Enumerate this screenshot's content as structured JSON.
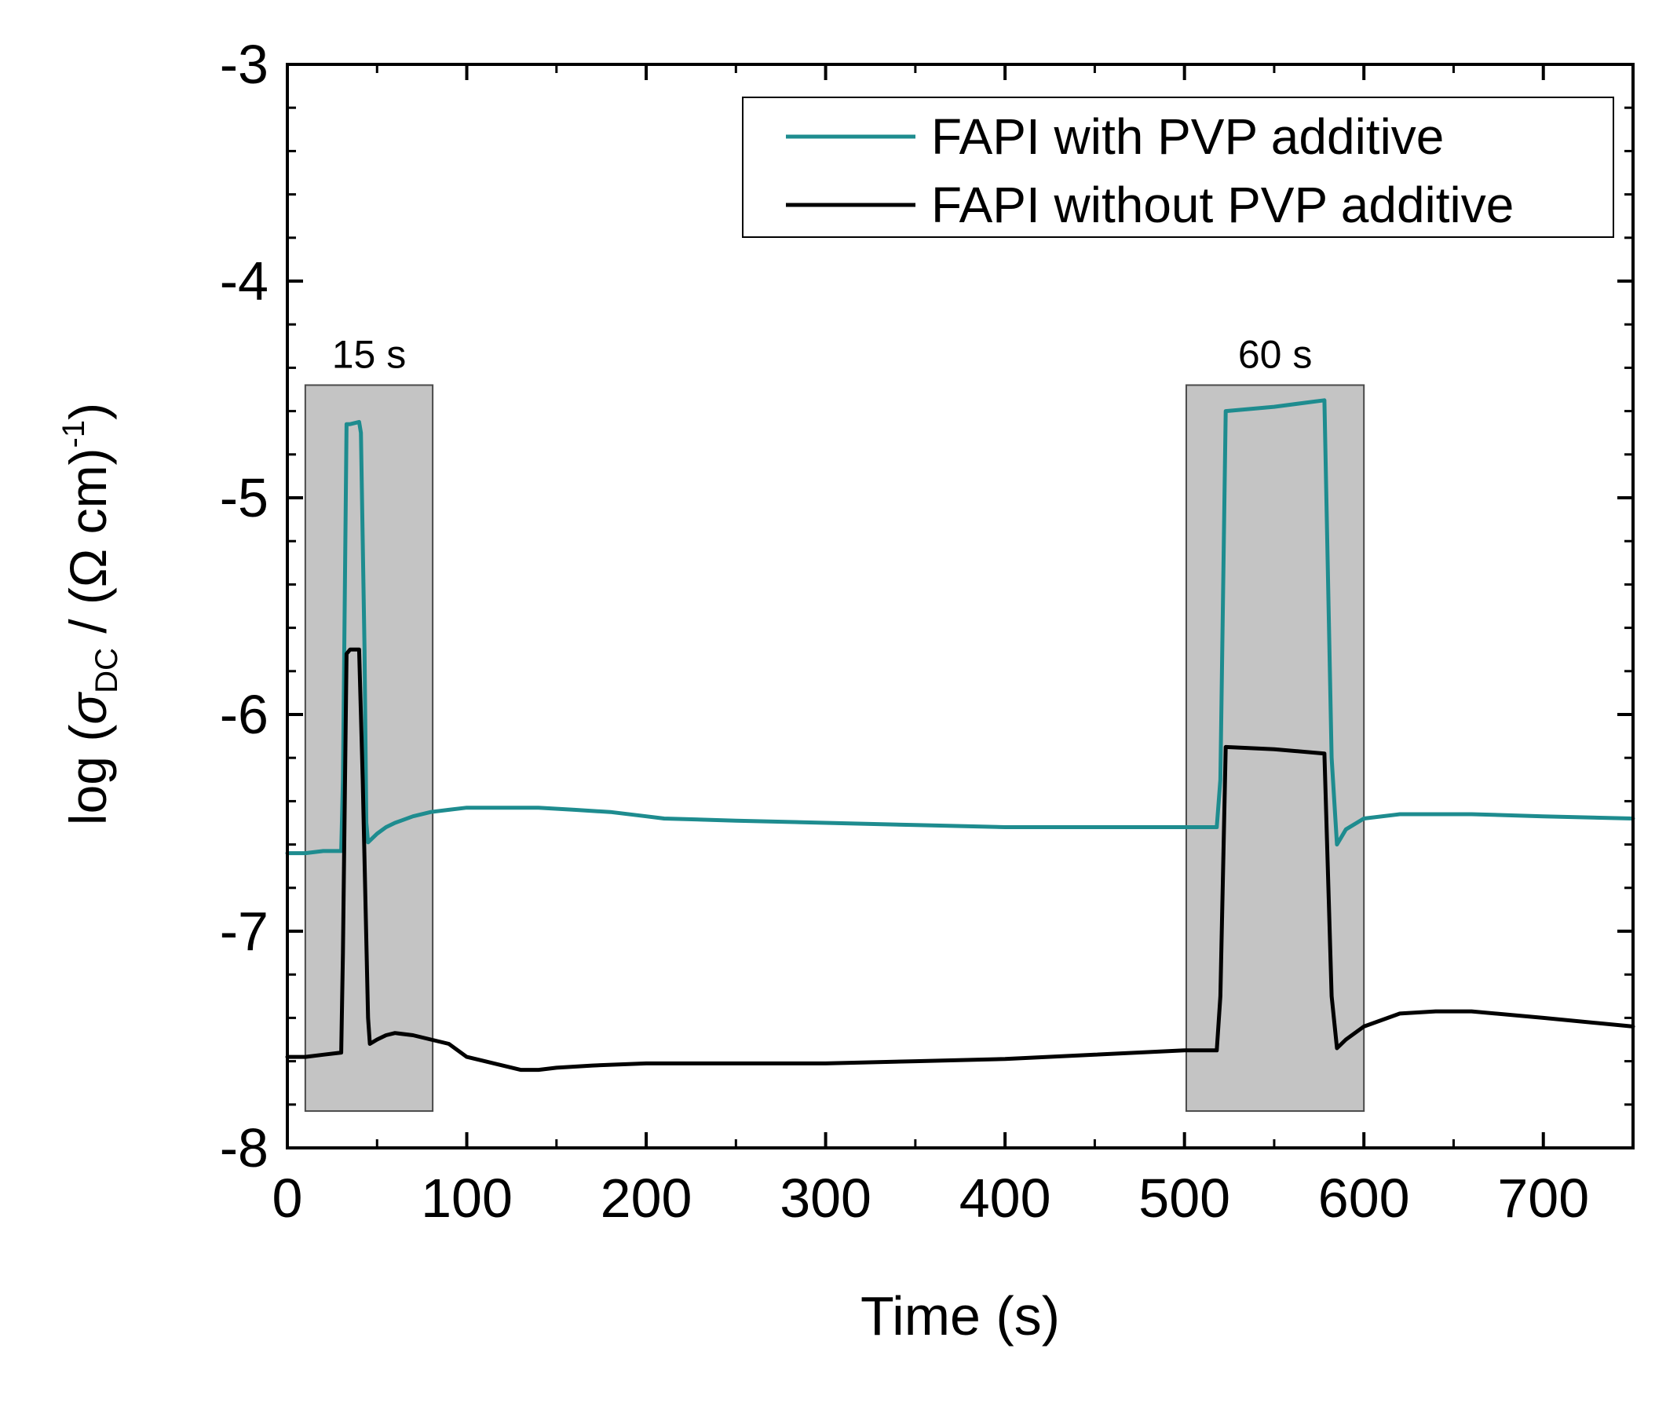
{
  "chart_data": {
    "type": "line",
    "title": "",
    "xlabel": "Time (s)",
    "ylabel": {
      "prefix": "log (",
      "symbol": "σ",
      "subscript": "DC",
      "middle": " / (Ω cm)",
      "superscript": "-1",
      "suffix": ")"
    },
    "xlim": [
      0,
      750
    ],
    "ylim": [
      -8,
      -3
    ],
    "xticks": [
      0,
      100,
      200,
      300,
      400,
      500,
      600,
      700
    ],
    "xtick_labels": [
      "0",
      "100",
      "200",
      "300",
      "400",
      "500",
      "600",
      "700"
    ],
    "yticks": [
      -8,
      -7,
      -6,
      -5,
      -4,
      -3
    ],
    "ytick_labels": [
      "-8",
      "-7",
      "-6",
      "-5",
      "-4",
      "-3"
    ],
    "grid": false,
    "legend_position": "top-right",
    "shaded_regions": [
      {
        "label": "15 s",
        "x": [
          10,
          81
        ],
        "y": [
          -7.83,
          -4.48
        ]
      },
      {
        "label": "60 s",
        "x": [
          501,
          600
        ],
        "y": [
          -7.83,
          -4.48
        ]
      }
    ],
    "series": [
      {
        "name": "FAPI with PVP additive",
        "color": "#1e8c8f",
        "x": [
          0,
          10,
          20,
          30,
          31,
          33,
          35,
          40,
          41,
          43,
          44,
          45,
          50,
          55,
          60,
          70,
          80,
          90,
          100,
          120,
          140,
          160,
          180,
          200,
          210,
          250,
          300,
          350,
          400,
          450,
          500,
          518,
          520,
          523,
          550,
          578,
          582,
          585,
          590,
          600,
          620,
          640,
          660,
          700,
          750
        ],
        "y": [
          -6.64,
          -6.64,
          -6.63,
          -6.63,
          -6.3,
          -4.66,
          -4.66,
          -4.65,
          -4.7,
          -5.7,
          -6.5,
          -6.59,
          -6.55,
          -6.52,
          -6.5,
          -6.47,
          -6.45,
          -6.44,
          -6.43,
          -6.43,
          -6.43,
          -6.44,
          -6.45,
          -6.47,
          -6.48,
          -6.49,
          -6.5,
          -6.51,
          -6.52,
          -6.52,
          -6.52,
          -6.52,
          -6.3,
          -4.6,
          -4.58,
          -4.55,
          -6.2,
          -6.6,
          -6.53,
          -6.48,
          -6.46,
          -6.46,
          -6.46,
          -6.47,
          -6.48
        ]
      },
      {
        "name": "FAPI without PVP additive",
        "color": "#000000",
        "x": [
          0,
          10,
          20,
          30,
          31,
          33,
          35,
          40,
          42,
          45,
          46,
          50,
          55,
          60,
          70,
          80,
          90,
          100,
          110,
          120,
          130,
          140,
          150,
          170,
          200,
          250,
          300,
          350,
          400,
          450,
          500,
          518,
          520,
          523,
          550,
          578,
          582,
          585,
          590,
          600,
          620,
          640,
          660,
          700,
          750
        ],
        "y": [
          -7.58,
          -7.58,
          -7.57,
          -7.56,
          -7.1,
          -5.72,
          -5.7,
          -5.7,
          -6.3,
          -7.4,
          -7.52,
          -7.5,
          -7.48,
          -7.47,
          -7.48,
          -7.5,
          -7.52,
          -7.58,
          -7.6,
          -7.62,
          -7.64,
          -7.64,
          -7.63,
          -7.62,
          -7.61,
          -7.61,
          -7.61,
          -7.6,
          -7.59,
          -7.57,
          -7.55,
          -7.55,
          -7.3,
          -6.15,
          -6.16,
          -6.18,
          -7.3,
          -7.54,
          -7.5,
          -7.44,
          -7.38,
          -7.37,
          -7.37,
          -7.4,
          -7.44
        ]
      }
    ]
  }
}
